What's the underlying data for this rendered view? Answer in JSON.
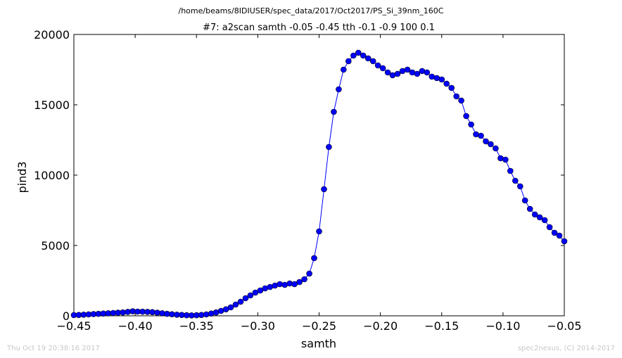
{
  "figure": {
    "suptitle": "/home/beams/8IDIUSER/spec_data/2017/Oct2017/PS_Si_39nm_160C",
    "footer_left": "Thu Oct 19 20:38:16 2017",
    "footer_right": "spec2nexus, (C) 2014-2017"
  },
  "chart_data": {
    "type": "line",
    "title": "#7: a2scan  samth -0.05 -0.45  tth -0.1 -0.9  100 0.1",
    "xlabel": "samth",
    "ylabel": "pind3",
    "xlim": [
      -0.45,
      -0.05
    ],
    "ylim": [
      0,
      20000
    ],
    "xticks": [
      "−0.45",
      "−0.40",
      "−0.35",
      "−0.30",
      "−0.25",
      "−0.20",
      "−0.15",
      "−0.10",
      "−0.05"
    ],
    "xtick_values": [
      -0.45,
      -0.4,
      -0.35,
      -0.3,
      -0.25,
      -0.2,
      -0.15,
      -0.1,
      -0.05
    ],
    "yticks": [
      "0",
      "5000",
      "10000",
      "15000",
      "20000"
    ],
    "ytick_values": [
      0,
      5000,
      10000,
      15000,
      20000
    ],
    "grid": false,
    "marker": "circle",
    "color": "#0000ff",
    "series": [
      {
        "x": [
          -0.45,
          -0.446,
          -0.442,
          -0.438,
          -0.434,
          -0.43,
          -0.426,
          -0.422,
          -0.418,
          -0.414,
          -0.41,
          -0.406,
          -0.402,
          -0.398,
          -0.394,
          -0.39,
          -0.386,
          -0.382,
          -0.378,
          -0.374,
          -0.37,
          -0.366,
          -0.362,
          -0.358,
          -0.354,
          -0.35,
          -0.346,
          -0.342,
          -0.338,
          -0.334,
          -0.33,
          -0.326,
          -0.322,
          -0.318,
          -0.314,
          -0.31,
          -0.306,
          -0.302,
          -0.298,
          -0.294,
          -0.29,
          -0.286,
          -0.282,
          -0.278,
          -0.274,
          -0.27,
          -0.266,
          -0.262,
          -0.258,
          -0.254,
          -0.25,
          -0.246,
          -0.242,
          -0.238,
          -0.234,
          -0.23,
          -0.226,
          -0.222,
          -0.218,
          -0.214,
          -0.21,
          -0.206,
          -0.202,
          -0.198,
          -0.194,
          -0.19,
          -0.186,
          -0.182,
          -0.178,
          -0.174,
          -0.17,
          -0.166,
          -0.162,
          -0.158,
          -0.154,
          -0.15,
          -0.146,
          -0.142,
          -0.138,
          -0.134,
          -0.13,
          -0.126,
          -0.122,
          -0.118,
          -0.114,
          -0.11,
          -0.106,
          -0.102,
          -0.098,
          -0.094,
          -0.09,
          -0.086,
          -0.082,
          -0.078,
          -0.074,
          -0.07,
          -0.066,
          -0.062,
          -0.058,
          -0.054,
          -0.05
        ],
        "values": [
          50,
          60,
          80,
          100,
          120,
          140,
          160,
          180,
          200,
          220,
          240,
          280,
          320,
          300,
          290,
          280,
          260,
          220,
          180,
          140,
          110,
          80,
          60,
          40,
          30,
          40,
          60,
          100,
          160,
          240,
          350,
          460,
          600,
          800,
          1000,
          1250,
          1450,
          1650,
          1800,
          1950,
          2050,
          2150,
          2250,
          2200,
          2300,
          2250,
          2400,
          2600,
          3000,
          4100,
          6000,
          9000,
          12000,
          14500,
          16100,
          17500,
          18100,
          18500,
          18700,
          18500,
          18300,
          18100,
          17800,
          17600,
          17300,
          17100,
          17200,
          17400,
          17500,
          17300,
          17200,
          17400,
          17300,
          17000,
          16900,
          16800,
          16500,
          16200,
          15600,
          15300,
          14200,
          13600,
          12900,
          12800,
          12400,
          12200,
          11900,
          11200,
          11100,
          10300,
          9600,
          9200,
          8200,
          7600,
          7200,
          7000,
          6800,
          6300,
          5900,
          5700,
          5300
        ]
      }
    ]
  }
}
